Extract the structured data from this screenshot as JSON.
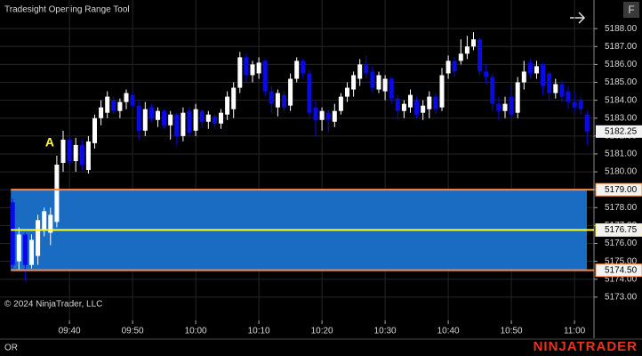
{
  "ui": {
    "title": "Tradesight Opening Range Tool",
    "copyright": "© 2024 NinjaTrader, LLC",
    "footer_left": "OR",
    "brand": "NINJATRADER",
    "button": "F"
  },
  "chart_data": {
    "type": "candlestick",
    "categories": [
      "09:31",
      "09:32",
      "09:33",
      "09:34",
      "09:35",
      "09:36",
      "09:37",
      "09:38",
      "09:39",
      "09:40",
      "09:41",
      "09:42",
      "09:43",
      "09:44",
      "09:45",
      "09:46",
      "09:47",
      "09:48",
      "09:49",
      "09:50",
      "09:51",
      "09:52",
      "09:53",
      "09:54",
      "09:55",
      "09:56",
      "09:57",
      "09:58",
      "09:59",
      "10:00",
      "10:01",
      "10:02",
      "10:03",
      "10:04",
      "10:05",
      "10:06",
      "10:07",
      "10:08",
      "10:09",
      "10:10",
      "10:11",
      "10:12",
      "10:13",
      "10:14",
      "10:15",
      "10:16",
      "10:17",
      "10:18",
      "10:19",
      "10:20",
      "10:21",
      "10:22",
      "10:23",
      "10:24",
      "10:25",
      "10:26",
      "10:27",
      "10:28",
      "10:29",
      "10:30",
      "10:31",
      "10:32",
      "10:33",
      "10:34",
      "10:35",
      "10:36",
      "10:37",
      "10:38",
      "10:39",
      "10:40",
      "10:41",
      "10:42",
      "10:43",
      "10:44",
      "10:45",
      "10:46",
      "10:47",
      "10:48",
      "10:49",
      "10:50",
      "10:51",
      "10:52",
      "10:53",
      "10:54",
      "10:55",
      "10:56",
      "10:57",
      "10:58",
      "10:59",
      "11:00",
      "11:01",
      "11:02"
    ],
    "open": [
      5178.3,
      5175,
      5176.5,
      5174.8,
      5175.3,
      5176.8,
      5176.6,
      5177.2,
      5180.5,
      5181.8,
      5180.6,
      5181.5,
      5180.1,
      5181.6,
      5183,
      5183.3,
      5184,
      5183.4,
      5183.9,
      5184.3,
      5183.7,
      5182.3,
      5183.6,
      5182.9,
      5183.4,
      5182.6,
      5183.2,
      5182,
      5183.4,
      5182.3,
      5183.4,
      5182.8,
      5183.1,
      5182.7,
      5183.2,
      5183.5,
      5184.7,
      5186.4,
      5185.4,
      5185.5,
      5186.2,
      5184.5,
      5183.6,
      5184.3,
      5183.7,
      5185.2,
      5186.2,
      5185.5,
      5183.6,
      5182.9,
      5183.3,
      5182.8,
      5183.4,
      5184.2,
      5184.6,
      5185.2,
      5186,
      5185.6,
      5184.6,
      5184.5,
      5185.2,
      5184.1,
      5183.4,
      5183.6,
      5184,
      5183.3,
      5183.5,
      5184.2,
      5183.6,
      5185.5,
      5186.2,
      5186.2,
      5186.6,
      5187,
      5187.4,
      5185.6,
      5185.3,
      5183.8,
      5183.4,
      5184.2,
      5183.3,
      5185,
      5186.1,
      5185.5,
      5186,
      5185.5,
      5184.4,
      5184.9,
      5184.5,
      5183.9,
      5184,
      5183.2
    ],
    "high": [
      5178.5,
      5176.9,
      5176.6,
      5176.5,
      5177.6,
      5178,
      5178,
      5180.9,
      5182.3,
      5182,
      5181.9,
      5181.8,
      5182,
      5183.2,
      5184,
      5184.5,
      5184.2,
      5184.1,
      5184.6,
      5184.5,
      5184,
      5183.9,
      5183.8,
      5183.6,
      5183.5,
      5183.4,
      5183.3,
      5183.6,
      5183.6,
      5183.8,
      5183.5,
      5183.4,
      5183.2,
      5183.5,
      5184.5,
      5185,
      5186.7,
      5186.6,
      5186.2,
      5186.4,
      5186.3,
      5184.8,
      5184.6,
      5184.5,
      5185.5,
      5186.4,
      5186.3,
      5185.7,
      5184,
      5183.6,
      5183.5,
      5183.8,
      5184.4,
      5185,
      5185.6,
      5186.3,
      5186.5,
      5185.9,
      5185.6,
      5185.4,
      5185.3,
      5184.3,
      5184,
      5184.6,
      5184.2,
      5184,
      5184.5,
      5184.4,
      5185.8,
      5186.5,
      5186.4,
      5187.4,
      5187.6,
      5187.8,
      5187.5,
      5186,
      5185.5,
      5184.2,
      5184.2,
      5184.8,
      5185.3,
      5186.2,
      5186.3,
      5186.2,
      5186.1,
      5185.6,
      5185.2,
      5185.1,
      5184.8,
      5184.4,
      5184.2,
      5183.4
    ],
    "low": [
      5174.6,
      5174.5,
      5173.9,
      5174.6,
      5174.8,
      5176.4,
      5175.9,
      5176.9,
      5180,
      5180.4,
      5180,
      5180.1,
      5179.9,
      5181.3,
      5182.6,
      5183,
      5183.2,
      5183,
      5183.5,
      5183.5,
      5181.8,
      5182,
      5182.8,
      5182.5,
      5182.4,
      5181.8,
      5181.5,
      5181.7,
      5182,
      5182,
      5182.5,
      5182.4,
      5182.4,
      5182.4,
      5182.9,
      5183,
      5184.4,
      5185,
      5185,
      5185.2,
      5184.2,
      5183.3,
      5183.1,
      5183.4,
      5183.4,
      5185,
      5185.2,
      5183,
      5182,
      5182.3,
      5182.2,
      5182.5,
      5183.2,
      5183.9,
      5184.2,
      5184.8,
      5185.2,
      5184.4,
      5184.4,
      5184,
      5183.8,
      5182.9,
      5183,
      5183.3,
      5183,
      5182.9,
      5183,
      5183.2,
      5183.4,
      5185.2,
      5185.3,
      5186,
      5186.3,
      5186.8,
      5185.4,
      5184.9,
      5183.4,
      5182.9,
      5183,
      5183,
      5183,
      5184.6,
      5185.2,
      5185.2,
      5184.3,
      5184,
      5184.1,
      5183.9,
      5183.5,
      5183.3,
      5183.2,
      5181.5
    ],
    "close": [
      5174.8,
      5176.5,
      5174.8,
      5176.2,
      5177.3,
      5177.8,
      5177.6,
      5180.4,
      5181.8,
      5180.6,
      5181.5,
      5180.4,
      5181.7,
      5183,
      5183.6,
      5184.2,
      5183.4,
      5183.9,
      5184.4,
      5183.7,
      5182.3,
      5183.5,
      5183,
      5183.4,
      5182.6,
      5183.2,
      5182,
      5183.3,
      5182.2,
      5183.5,
      5182.8,
      5183.2,
      5182.7,
      5183.3,
      5184.2,
      5184.7,
      5186.4,
      5185.4,
      5186,
      5186.1,
      5184.5,
      5183.8,
      5184.4,
      5183.6,
      5185.2,
      5186.2,
      5185.5,
      5183.3,
      5182.9,
      5183.4,
      5182.9,
      5183.4,
      5184.2,
      5184.7,
      5185.4,
      5186,
      5185.5,
      5184.7,
      5185.4,
      5185.2,
      5184.1,
      5183.4,
      5183.8,
      5184.3,
      5183.2,
      5183.7,
      5184.2,
      5183.5,
      5185.4,
      5186.2,
      5185.6,
      5186.6,
      5187,
      5187.4,
      5185.6,
      5185.3,
      5183.8,
      5183.4,
      5183.8,
      5183.2,
      5185,
      5185.6,
      5185.5,
      5185.9,
      5184.8,
      5184.4,
      5184.9,
      5184.2,
      5183.9,
      5183.6,
      5183.5,
      5182.25
    ],
    "up_color": "#ffffff",
    "down_color": "#0a0ae8",
    "ylim": [
      5171.7,
      5189.6
    ],
    "yticks": [
      {
        "value": 5173,
        "label": "5173.00"
      },
      {
        "value": 5174,
        "label": "5174.00"
      },
      {
        "value": 5175,
        "label": "5175.00"
      },
      {
        "value": 5176,
        "label": "5176.00"
      },
      {
        "value": 5177,
        "label": "5177.00"
      },
      {
        "value": 5178,
        "label": "5178.00"
      },
      {
        "value": 5179,
        "label": "5179.00"
      },
      {
        "value": 5180,
        "label": "5180.00"
      },
      {
        "value": 5181,
        "label": "5181.00"
      },
      {
        "value": 5182,
        "label": "5182.00"
      },
      {
        "value": 5183,
        "label": "5183.00"
      },
      {
        "value": 5184,
        "label": "5184.00"
      },
      {
        "value": 5185,
        "label": "5185.00"
      },
      {
        "value": 5186,
        "label": "5186.00"
      },
      {
        "value": 5187,
        "label": "5187.00"
      },
      {
        "value": 5188,
        "label": "5188.00"
      }
    ],
    "xticks": [
      "09:40",
      "09:50",
      "10:00",
      "10:10",
      "10:20",
      "10:30",
      "10:40",
      "10:50",
      "11:00"
    ],
    "grid": true,
    "levels": [
      {
        "value": 5179,
        "label": "5179.00",
        "color": "#ff8a3d"
      },
      {
        "value": 5176.75,
        "label": "5176.75",
        "color": "#ffff33"
      },
      {
        "value": 5174.5,
        "label": "5174.50",
        "color": "#ff8a3d"
      }
    ],
    "range_fill": "#1a6cc2",
    "last_price": {
      "value": 5182.25,
      "label": "5182.25"
    },
    "annotations": [
      {
        "text": "A",
        "x": "09:38",
        "color": "#ffff33"
      }
    ]
  }
}
